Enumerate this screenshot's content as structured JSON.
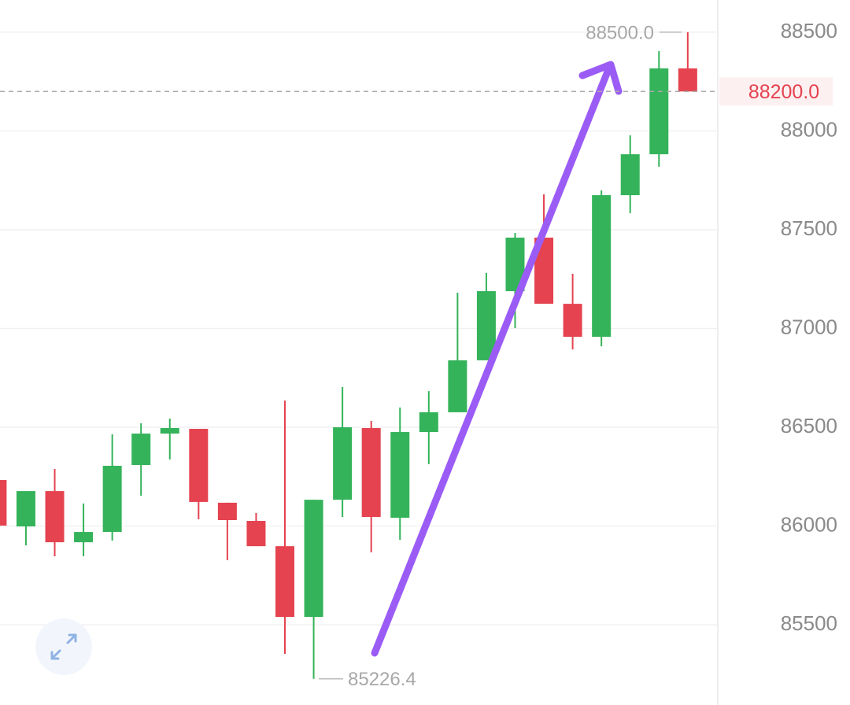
{
  "chart_data": {
    "type": "candlestick",
    "ylim": [
      85094,
      88663
    ],
    "yticks": [
      85500,
      86000,
      86500,
      87000,
      87500,
      88000,
      88500
    ],
    "grid": true,
    "up_color": "#34b35a",
    "down_color": "#e4434f",
    "open": [
      86233,
      85998,
      86177,
      85918,
      85970,
      86309,
      86468,
      86492,
      86118,
      86026,
      85898,
      85540,
      86133,
      86496,
      86042,
      86476,
      86576,
      86839,
      87189,
      87460,
      87125,
      86958,
      87675,
      87882,
      88317
    ],
    "high": [
      86233,
      86177,
      86289,
      86114,
      86464,
      86520,
      86544,
      86492,
      86118,
      86066,
      86635,
      86133,
      86703,
      86532,
      86600,
      86683,
      87181,
      87281,
      87484,
      87679,
      87277,
      87699,
      87978,
      88404,
      88500
    ],
    "low": [
      86002,
      85902,
      85847,
      85847,
      85926,
      86153,
      86337,
      86034,
      85827,
      85898,
      85353,
      85226.4,
      86046,
      85867,
      85930,
      86313,
      86576,
      86839,
      87002,
      87125,
      86894,
      86910,
      87584,
      87819,
      88200
    ],
    "close": [
      86002,
      86177,
      85918,
      85970,
      86305,
      86468,
      86496,
      86122,
      86030,
      85898,
      85540,
      86133,
      86500,
      86046,
      86476,
      86576,
      86839,
      87189,
      87460,
      87125,
      86958,
      87675,
      87882,
      88317,
      88200
    ],
    "max_label": {
      "value": 88500,
      "label": "88500.0"
    },
    "min_label": {
      "value": 85226.4,
      "label": "85226.4"
    },
    "last_price": {
      "value": 88200,
      "label": "88200.0"
    }
  }
}
